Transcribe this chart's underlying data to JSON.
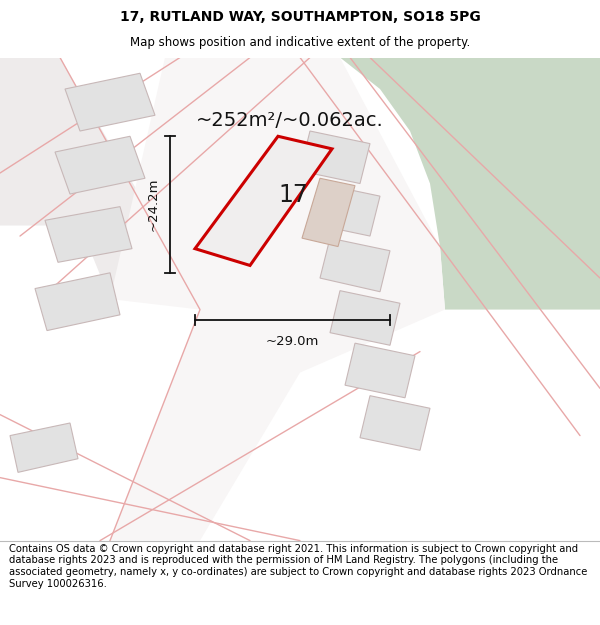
{
  "title_line1": "17, RUTLAND WAY, SOUTHAMPTON, SO18 5PG",
  "title_line2": "Map shows position and indicative extent of the property.",
  "area_label": "~252m²/~0.062ac.",
  "number_label": "17",
  "dim_width": "~29.0m",
  "dim_height": "~24.2m",
  "footer_text": "Contains OS data © Crown copyright and database right 2021. This information is subject to Crown copyright and database rights 2023 and is reproduced with the permission of HM Land Registry. The polygons (including the associated geometry, namely x, y co-ordinates) are subject to Crown copyright and database rights 2023 Ordnance Survey 100026316.",
  "map_bg": "#f7f4f4",
  "green_color": "#c9d9c6",
  "plot_outline_color": "#cc0000",
  "plot_fill_color": "#f0eeee",
  "neighbor_fill": "#e2e2e2",
  "neighbor_stroke": "#c8b8b8",
  "road_line_color": "#e8a8a8",
  "dim_line_color": "#111111",
  "adj_fill": "#ddd0c8",
  "title_fontsize": 10,
  "subtitle_fontsize": 8.5,
  "area_fontsize": 14,
  "number_fontsize": 17,
  "dim_fontsize": 9.5,
  "footer_fontsize": 7.2
}
